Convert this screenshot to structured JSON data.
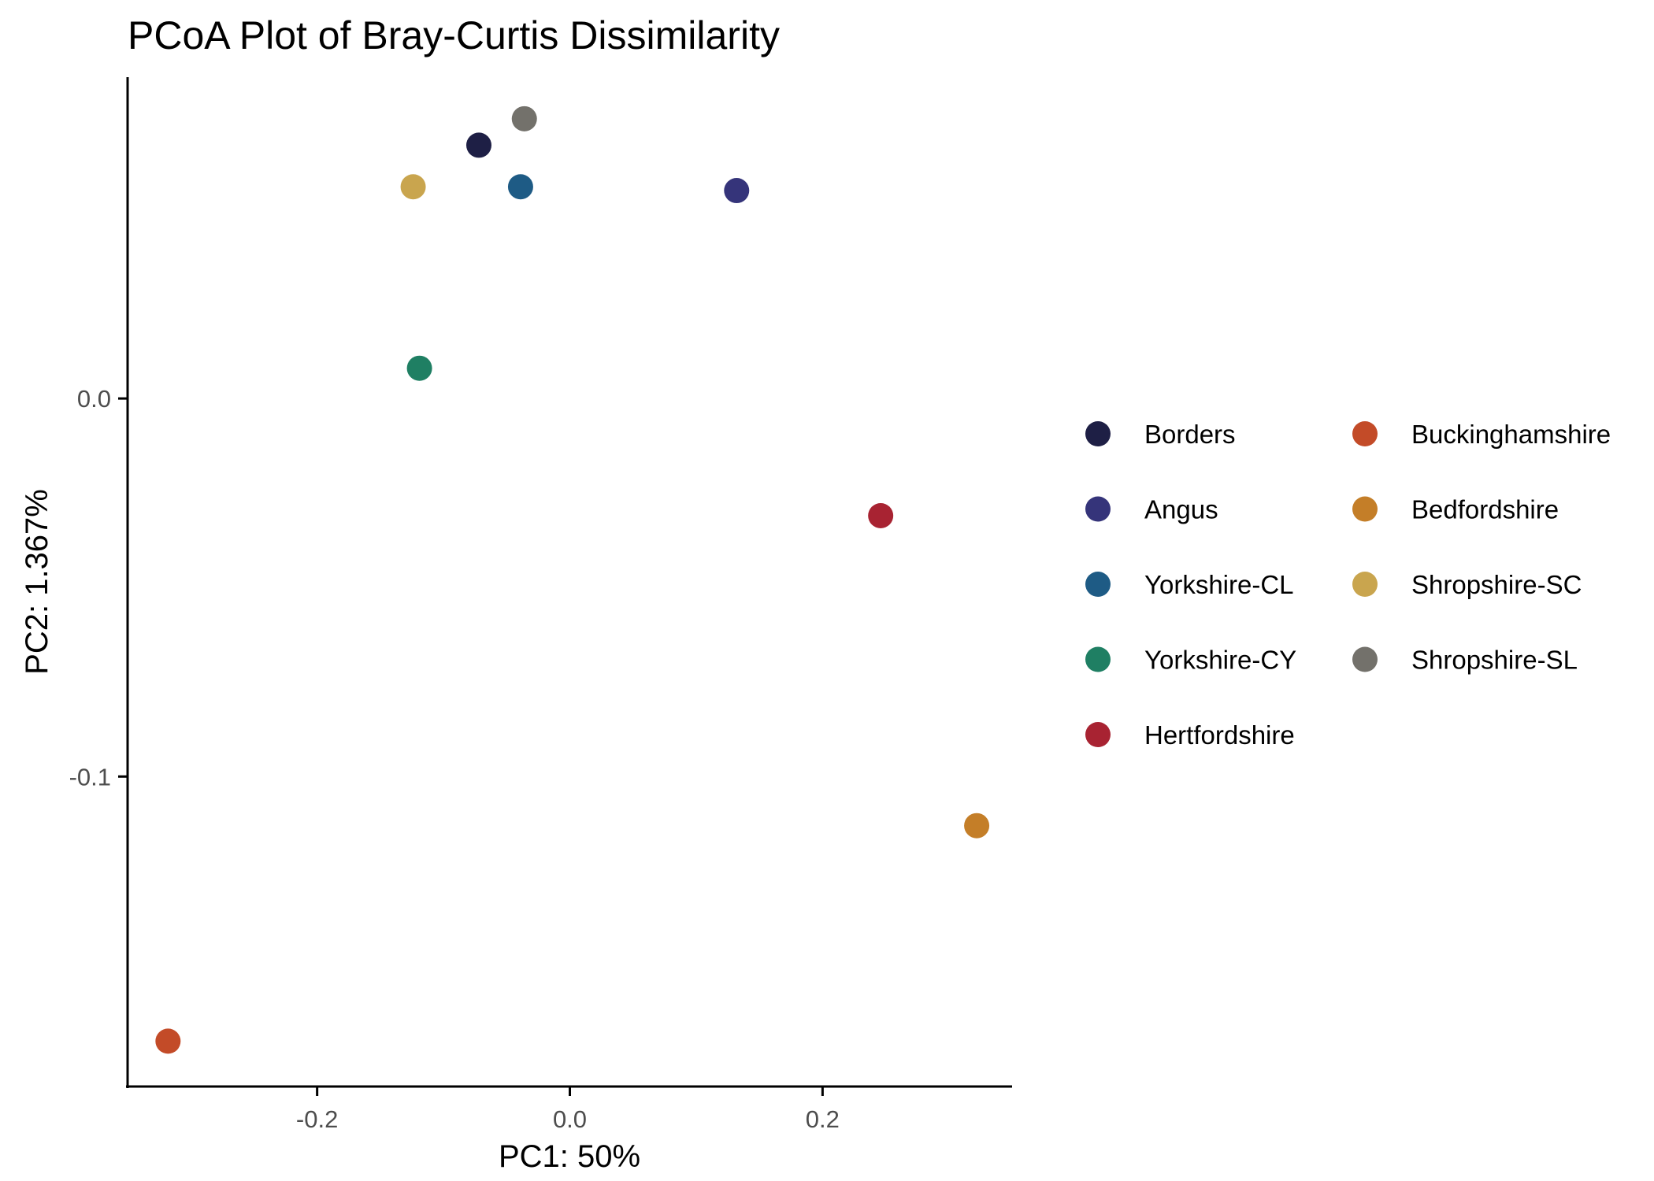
{
  "chart_data": {
    "type": "scatter",
    "title": "PCoA Plot of Bray-Curtis Dissimilarity",
    "xlabel": "PC1: 50%",
    "ylabel": "PC2: 1.367%",
    "xlim": [
      -0.35,
      0.35
    ],
    "ylim": [
      -0.182,
      0.085
    ],
    "x_ticks": [
      -0.2,
      0.0,
      0.2
    ],
    "x_tick_labels": [
      "-0.2",
      "0.0",
      "0.2"
    ],
    "y_ticks": [
      -0.1,
      0.0
    ],
    "y_tick_labels": [
      "-0.1",
      "0.0"
    ],
    "grid": false,
    "legend_position": "right",
    "legend_columns": 2,
    "series": [
      {
        "name": "Borders",
        "color": "#1e1f45",
        "x": -0.072,
        "y": 0.067
      },
      {
        "name": "Angus",
        "color": "#35347a",
        "x": 0.132,
        "y": 0.055
      },
      {
        "name": "Yorkshire-CL",
        "color": "#1e5b85",
        "x": -0.039,
        "y": 0.056
      },
      {
        "name": "Yorkshire-CY",
        "color": "#1f7f63",
        "x": -0.119,
        "y": 0.008
      },
      {
        "name": "Hertfordshire",
        "color": "#a82332",
        "x": 0.246,
        "y": -0.031
      },
      {
        "name": "Buckinghamshire",
        "color": "#c34b28",
        "x": -0.318,
        "y": -0.17
      },
      {
        "name": "Bedfordshire",
        "color": "#c47e28",
        "x": 0.322,
        "y": -0.113
      },
      {
        "name": "Shropshire-SC",
        "color": "#c9a54e",
        "x": -0.124,
        "y": 0.056
      },
      {
        "name": "Shropshire-SL",
        "color": "#73716b",
        "x": -0.036,
        "y": 0.074
      }
    ]
  }
}
